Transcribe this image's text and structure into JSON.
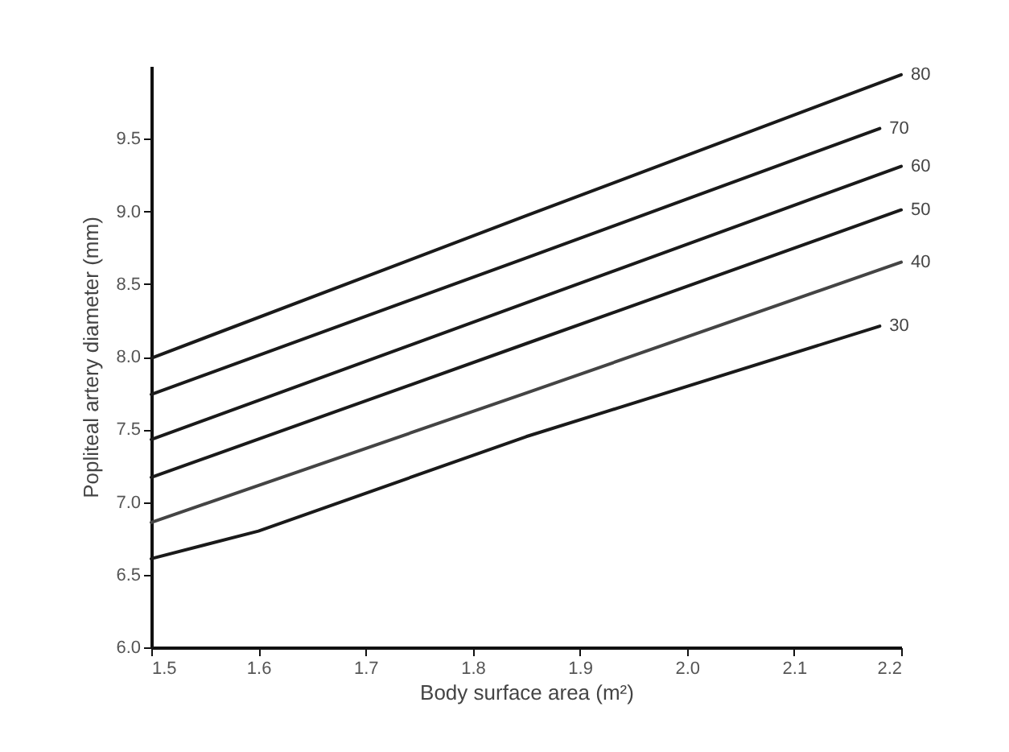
{
  "chart_data": {
    "type": "line",
    "xlabel": "Body surface area (m²)",
    "ylabel": "Popliteal artery diameter (mm)",
    "xlim": [
      1.5,
      2.2
    ],
    "xticks": [
      1.5,
      1.6,
      1.7,
      1.8,
      1.9,
      {
        "value": 2,
        "label": "2.0"
      },
      2.1,
      2.2
    ],
    "ylim": [
      6,
      10
    ],
    "yticks": [
      {
        "value": 6,
        "label": "6.0"
      },
      6.5,
      {
        "value": 7,
        "label": "7.0"
      },
      7.5,
      {
        "value": 8,
        "label": "8.0"
      },
      8.5,
      {
        "value": 9,
        "label": "9.0"
      },
      9.5
    ],
    "grid": false,
    "legend": false,
    "marker": "none",
    "line_style": "solid",
    "series": [
      {
        "name": "80",
        "color": "#1a1a1a",
        "x": [
          1.5,
          1.85,
          2.2
        ],
        "values": [
          7.99,
          8.97,
          9.94
        ]
      },
      {
        "name": "70",
        "color": "#1a1a1a",
        "x": [
          1.5,
          1.85,
          2.18
        ],
        "values": [
          7.74,
          8.68,
          9.57
        ]
      },
      {
        "name": "60",
        "color": "#1a1a1a",
        "x": [
          1.5,
          1.85,
          2.2
        ],
        "values": [
          7.43,
          8.37,
          9.31
        ]
      },
      {
        "name": "50",
        "color": "#1a1a1a",
        "x": [
          1.5,
          1.85,
          2.2
        ],
        "values": [
          7.17,
          8.09,
          9.01
        ]
      },
      {
        "name": "40",
        "color": "#444444",
        "x": [
          1.5,
          1.85,
          2.2
        ],
        "values": [
          6.86,
          7.75,
          8.65
        ]
      },
      {
        "name": "30",
        "color": "#1a1a1a",
        "x": [
          1.5,
          1.6,
          1.85,
          2.18
        ],
        "values": [
          6.61,
          6.8,
          7.45,
          8.21
        ]
      }
    ]
  }
}
